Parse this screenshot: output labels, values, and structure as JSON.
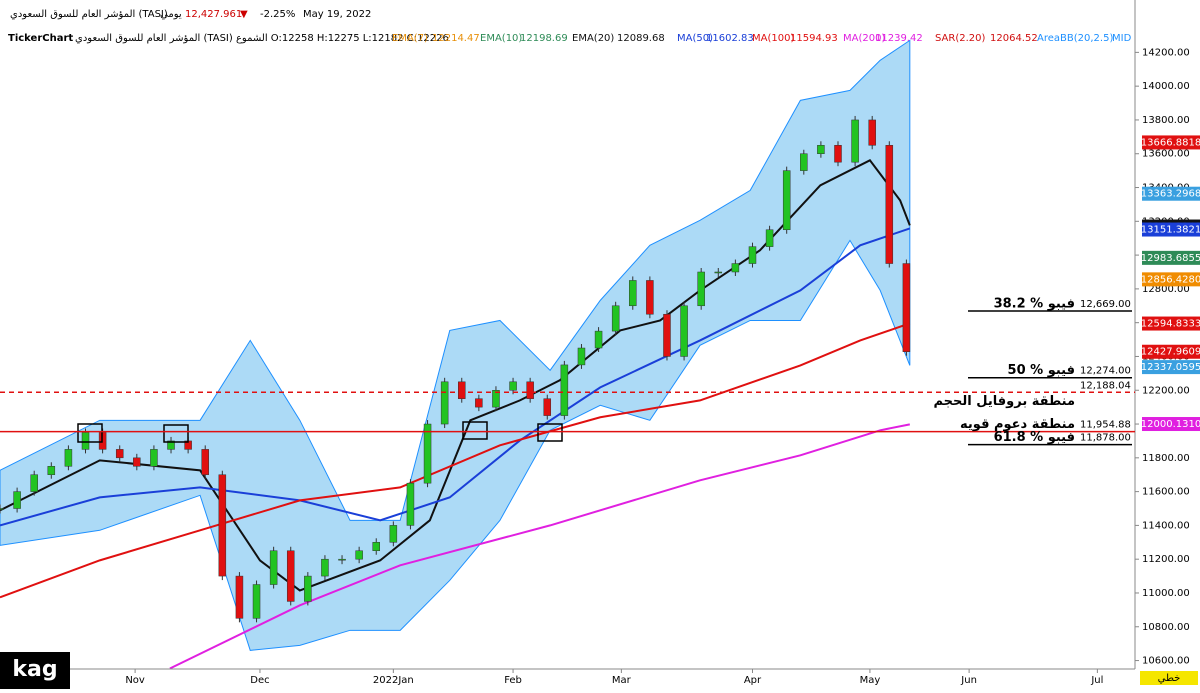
{
  "header": {
    "name": "المؤشر العام للسوق السعودي (TASI)",
    "period": "يومي",
    "price": "12,427.961",
    "arrow": "▼",
    "change": "-2.25%",
    "date": "May 19, 2022",
    "brand": "TickerChart",
    "ohlc": "المؤشر العام للسوق السعودي (TASI) الشموع O:12258 H:12275 L:12182 C:12226",
    "user": "kag",
    "mode": "خطي"
  },
  "chart_data": {
    "type": "candlestick",
    "up_color": "#22c322",
    "down_color": "#e01010",
    "x": [
      0,
      3,
      6,
      9,
      12,
      15,
      18,
      21,
      24,
      27,
      30,
      33,
      36,
      39,
      42,
      45,
      48,
      51,
      54,
      57,
      60,
      63,
      66,
      69,
      72,
      75,
      78,
      81,
      84,
      87,
      90,
      93,
      96,
      99,
      102,
      105,
      108,
      111,
      114,
      117,
      120,
      123,
      126,
      129,
      132,
      135,
      138,
      141,
      144,
      147,
      150,
      153,
      156,
      159
    ],
    "close": [
      11500,
      11600,
      11700,
      11750,
      11850,
      11950,
      11850,
      11800,
      11750,
      11850,
      11900,
      11850,
      11700,
      11100,
      10850,
      11050,
      11250,
      10950,
      11100,
      11200,
      11200,
      11250,
      11300,
      11400,
      11650,
      12000,
      12250,
      12150,
      12100,
      12200,
      12250,
      12150,
      12050,
      12350,
      12450,
      12550,
      12700,
      12850,
      12650,
      12400,
      12700,
      12900,
      12900,
      12950,
      13050,
      13150,
      13500,
      13600,
      13650,
      13550,
      13800,
      13650,
      12950,
      12428
    ],
    "xlim": [
      0,
      199.1
    ],
    "ylim": [
      10550,
      14510
    ],
    "xticks": [
      {
        "value": 23.7,
        "label": "Nov"
      },
      {
        "value": 45.6,
        "label": "Dec"
      },
      {
        "value": 69,
        "label": "2022Jan"
      },
      {
        "value": 90,
        "label": "Feb"
      },
      {
        "value": 109,
        "label": "Mar"
      },
      {
        "value": 132,
        "label": "Apr"
      },
      {
        "value": 152.6,
        "label": "May"
      },
      {
        "value": 170,
        "label": "Jun"
      },
      {
        "value": 192.5,
        "label": "Jul"
      }
    ],
    "yticks": [
      {
        "value": 14200,
        "label": "14200.00"
      },
      {
        "value": 14000,
        "label": "14000.00"
      },
      {
        "value": 13800,
        "label": "13800.00"
      },
      {
        "value": 13600,
        "label": "13600.00"
      },
      {
        "value": 13400,
        "label": "13400.00"
      },
      {
        "value": 13200,
        "label": "13200.00"
      },
      {
        "value": 13000,
        "label": "13000.00"
      },
      {
        "value": 12800,
        "label": "12800.00"
      },
      {
        "value": 12600,
        "label": "12600.00"
      },
      {
        "value": 12400,
        "label": "12400.00"
      },
      {
        "value": 12200,
        "label": "12200.00"
      },
      {
        "value": 12000,
        "label": "12000.00"
      },
      {
        "value": 11800,
        "label": "11800.00"
      },
      {
        "value": 11600,
        "label": "11600.00"
      },
      {
        "value": 11400,
        "label": "11400.00"
      },
      {
        "value": 11200,
        "label": "11200.00"
      },
      {
        "value": 11000,
        "label": "11000.00"
      },
      {
        "value": 10800,
        "label": "10800.00"
      },
      {
        "value": 10600,
        "label": "10600.00"
      }
    ],
    "indicators": [
      {
        "name": "EMA(7)",
        "legend_value": 12214.47,
        "color": "#e8900a"
      },
      {
        "name": "EMA(10)",
        "legend_value": 12198.69,
        "color": "#2e8b57"
      },
      {
        "name": "EMA(20)",
        "legend_value": 12089.68,
        "color": "#111111",
        "x": [
          0,
          17.5,
          35.1,
          45.6,
          52.6,
          66.7,
          75.4,
          82.5,
          91.2,
          98.2,
          108.8,
          115.8,
          122.8,
          133.3,
          143.9,
          152.6,
          157.9,
          159.6
        ],
        "values": [
          11489,
          11785,
          11726,
          11193,
          11015,
          11193,
          11430,
          12022,
          12140,
          12259,
          12554,
          12613,
          12791,
          13028,
          13413,
          13561,
          13324,
          13176
        ]
      },
      {
        "name": "MA(50)",
        "legend_value": 11602.83,
        "color": "#1a3fd8",
        "x": [
          0,
          17.5,
          35.1,
          52.6,
          66.7,
          78.9,
          91.2,
          105.3,
          122.8,
          140.4,
          150.9,
          159.6
        ],
        "values": [
          11400,
          11566,
          11625,
          11548,
          11430,
          11566,
          11903,
          12217,
          12495,
          12791,
          13058,
          13158
        ]
      },
      {
        "name": "MA(100)",
        "legend_value": 11594.93,
        "color": "#e01010",
        "x": [
          0,
          17.5,
          35.1,
          52.6,
          70.2,
          87.7,
          105.3,
          122.8,
          140.4,
          150.9,
          159.6
        ],
        "values": [
          10974,
          11193,
          11371,
          11548,
          11625,
          11874,
          12040,
          12140,
          12347,
          12495,
          12596
        ]
      },
      {
        "name": "MA(200)",
        "legend_value": 11239.42,
        "color": "#e020e0",
        "x": [
          29.8,
          52.6,
          70.2,
          96.5,
          122.8,
          140.4,
          154.4,
          159.6
        ],
        "values": [
          10553,
          10927,
          11164,
          11400,
          11667,
          11815,
          11963,
          11998
        ]
      },
      {
        "name": "SAR(2.20)",
        "legend_value": 12064.52,
        "color": "#d01010"
      },
      {
        "name": "AreaBB(20,2.5)",
        "legend_label": "MID",
        "color": "#1e90ff",
        "x": [
          0,
          17.5,
          35.1,
          43.9,
          52.6,
          61.4,
          70.2,
          78.9,
          87.7,
          96.5,
          105.3,
          114,
          122.8,
          131.6,
          140.4,
          149.1,
          154.4,
          159.6
        ],
        "upper": [
          11726,
          12022,
          12022,
          12495,
          12022,
          11430,
          11430,
          12554,
          12613,
          12318,
          12732,
          13058,
          13206,
          13383,
          13916,
          13975,
          14153,
          14271
        ],
        "lower": [
          11282,
          11371,
          11578,
          10660,
          10690,
          10779,
          10779,
          11075,
          11430,
          11963,
          12111,
          12022,
          12466,
          12613,
          12613,
          13087,
          12791,
          12347
        ]
      }
    ],
    "price_tags": [
      {
        "value": 13666.8818,
        "label": "13666.8818",
        "color": "#e01010"
      },
      {
        "value": 13363.2968,
        "label": "13363.2968",
        "color": "#3aa0e0"
      },
      {
        "value": 13169.114,
        "label": "13169.1140",
        "color": "#111111"
      },
      {
        "value": 13151.3821,
        "label": "13151.3821",
        "color": "#1a3fd8"
      },
      {
        "value": 12983.6855,
        "label": "12983.6855",
        "color": "#2e8b57"
      },
      {
        "value": 12856.428,
        "label": "12856.4280",
        "color": "#f08c00"
      },
      {
        "value": 12594.8333,
        "label": "12594.8333",
        "color": "#e01010"
      },
      {
        "value": 12427.9609,
        "label": "12427.9609",
        "color": "#e01010"
      },
      {
        "value": 12337.0595,
        "label": "12337.0595",
        "color": "#3aa0e0"
      },
      {
        "value": 12000.131,
        "label": "12000.1310",
        "color": "#e020e0"
      }
    ],
    "annotations": [
      {
        "text": "38.2 % فيبو",
        "value": 12669,
        "value_label": "12,669.00",
        "style": "fibo"
      },
      {
        "text": "50 % فيبو",
        "value": 12274,
        "value_label": "12,274.00",
        "style": "fibo"
      },
      {
        "text": "منطقة بروفايل الحجم",
        "value": 12188.04,
        "value_label": "12,188.04",
        "style": "dashed"
      },
      {
        "text": "منطقة دعوم قويه",
        "value": 11954.88,
        "value_label": "11,954.88",
        "style": "solid"
      },
      {
        "text": "61.8 % فيبو",
        "value": 11878,
        "value_label": "11,878.00",
        "style": "fibo"
      }
    ]
  }
}
